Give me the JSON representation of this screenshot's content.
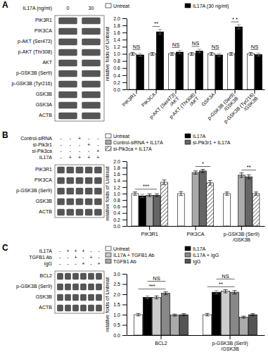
{
  "chart_data": [
    {
      "type": "blot",
      "categories": [
        "PIK3R1",
        "PIK3CA",
        "p-AKT (Ser473)",
        "p-AKT (Thr308)",
        "AKT",
        "p-GSK3B (Ser9)",
        "p-GSK3B (Tyr216)",
        "GSK3B",
        "GSK3A",
        "ACTB"
      ],
      "series": [
        {
          "name": "IL17A (ng/ml)",
          "value_labels": [
            "0",
            "30"
          ]
        }
      ]
    },
    {
      "type": "bar",
      "title": "A",
      "ylabel": "relative folds of Untreat",
      "categories": [
        "PIK3R1",
        "PIK3CA",
        "p-AKT (Ser473)\n/AKT",
        "p-AKT (Thr308)\n/AKT",
        "GSK3A",
        "p-GSK3B (Ser9)\n/GSK3B",
        "p-GSK3B (Tyr216)\n/GSK3B"
      ],
      "series": [
        {
          "name": "Untreat",
          "color": "white",
          "values": [
            1.0,
            1.0,
            1.0,
            1.0,
            1.0,
            1.0,
            1.0
          ],
          "errors": [
            0.04,
            0.04,
            0.04,
            0.04,
            0.04,
            0.04,
            0.04
          ]
        },
        {
          "name": "IL17A (30 ng/ml)",
          "color": "black",
          "values": [
            0.97,
            1.62,
            1.05,
            1.08,
            0.97,
            1.76,
            0.98
          ],
          "errors": [
            0.04,
            0.07,
            0.05,
            0.05,
            0.04,
            0.06,
            0.04
          ]
        }
      ],
      "annotations": [
        "NS",
        "**",
        "NS",
        "NS",
        "NS",
        "* *",
        "NS"
      ],
      "ylim": [
        0,
        2
      ],
      "yticks": [
        {
          "value": 0,
          "label": "0.0"
        },
        0.2,
        0.4,
        0.6,
        0.8,
        {
          "value": 1,
          "label": "1.0"
        },
        1.2,
        1.4,
        1.6,
        1.8,
        {
          "value": 2,
          "label": "2.0"
        }
      ],
      "legend": "top"
    },
    {
      "type": "blot",
      "categories": [
        "PIK3R1",
        "PIK3CA",
        "p-GSK3B (Ser9)",
        "GSK3B",
        "ACTB"
      ],
      "series": [
        {
          "name": "Control-siRNA",
          "value_labels": [
            "-",
            "-",
            "+",
            "-",
            "-"
          ]
        },
        {
          "name": "si-Pik3r1",
          "value_labels": [
            "-",
            "-",
            "-",
            "+",
            "-"
          ]
        },
        {
          "name": "si-Pik3ca",
          "value_labels": [
            "-",
            "-",
            "-",
            "-",
            "+"
          ]
        },
        {
          "name": "IL17A",
          "value_labels": [
            "-",
            "+",
            "+",
            "+",
            "+"
          ]
        }
      ]
    },
    {
      "type": "bar",
      "title": "B",
      "ylabel": "relative folds of Untreat",
      "categories": [
        "PIK3R1",
        "PIK3CA",
        "p-GSK3B (Ser9)\n/GSK3B"
      ],
      "series": [
        {
          "name": "Untreat",
          "color": "white",
          "values": [
            1.0,
            1.0,
            1.0
          ],
          "errors": [
            0.05,
            0.06,
            0.05
          ]
        },
        {
          "name": "IL17A",
          "color": "black",
          "values": [
            0.93,
            null,
            null
          ],
          "errors": [
            0.05,
            null,
            null
          ]
        },
        {
          "name": "Control-siRNA + IL17A",
          "color": "#aaaaaa",
          "values": [
            0.95,
            1.65,
            1.57
          ],
          "errors": [
            0.04,
            0.05,
            0.07
          ]
        },
        {
          "name": "si-Pik3r1 + IL17A",
          "color": "#666666",
          "values": [
            0.95,
            1.7,
            1.52
          ],
          "errors": [
            0.04,
            0.05,
            0.06
          ]
        },
        {
          "name": "si-Pik3ca + IL17A",
          "color": "white",
          "values": [
            1.35,
            1.33,
            1.0
          ],
          "errors": [
            0.07,
            0.07,
            0.05
          ]
        }
      ],
      "annotations": [
        "***",
        "*",
        "**"
      ],
      "ylim": [
        0,
        2
      ],
      "yticks": [
        {
          "value": 0,
          "label": "0.0"
        },
        0.2,
        0.4,
        0.6,
        0.8,
        {
          "value": 1,
          "label": "1.0"
        },
        1.2,
        1.4,
        1.6,
        1.8,
        {
          "value": 2,
          "label": "2.0"
        }
      ],
      "legend": "top"
    },
    {
      "type": "blot",
      "categories": [
        "BCL2",
        "p-GSK3B (Ser9)",
        "GSK3B",
        "ACTB"
      ],
      "series": [
        {
          "name": "IL17A",
          "value_labels": [
            "-",
            "+",
            "+",
            "+",
            "-",
            "-"
          ]
        },
        {
          "name": "TGFB1 Ab",
          "value_labels": [
            "-",
            "-",
            "+",
            "-",
            "+",
            "-"
          ]
        },
        {
          "name": "IgG",
          "value_labels": [
            "-",
            "-",
            "-",
            "+",
            "-",
            "+"
          ]
        }
      ]
    },
    {
      "type": "bar",
      "title": "C",
      "ylabel": "relative folds of Untreat",
      "categories": [
        "BCL2",
        "p-GSK3B (Ser9)\n/GSK3B"
      ],
      "series": [
        {
          "name": "Untreat",
          "color": "white",
          "values": [
            1.0,
            1.0
          ],
          "errors": [
            0.06,
            0.06
          ]
        },
        {
          "name": "IL17A",
          "color": "black",
          "values": [
            1.85,
            2.1
          ],
          "errors": [
            0.07,
            0.08
          ]
        },
        {
          "name": "IL17A + TGFB1 Ab",
          "color": "#cccccc",
          "values": [
            1.85,
            2.15
          ],
          "errors": [
            0.07,
            0.08
          ]
        },
        {
          "name": "IL17A + IgG",
          "color": "#888888",
          "values": [
            2.05,
            2.1
          ],
          "errors": [
            0.07,
            0.08
          ]
        },
        {
          "name": "TGFB1 Ab",
          "color": "#aaaaaa",
          "values": [
            0.98,
            0.88
          ],
          "errors": [
            0.05,
            0.05
          ]
        },
        {
          "name": "IgG",
          "color": "#555555",
          "values": [
            1.0,
            1.0
          ],
          "errors": [
            0.05,
            0.05
          ]
        }
      ],
      "annotations": [
        "***",
        "NS",
        "**",
        "NS"
      ],
      "ylim": [
        0,
        3
      ],
      "yticks": [
        {
          "value": 0,
          "label": "0.0"
        },
        0.5,
        {
          "value": 1,
          "label": "1.0"
        },
        1.5,
        {
          "value": 2,
          "label": "2.0"
        },
        2.5,
        {
          "value": 3,
          "label": "3.0"
        }
      ],
      "legend": "top"
    }
  ]
}
